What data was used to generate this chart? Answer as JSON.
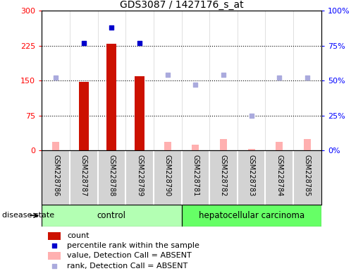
{
  "title": "GDS3087 / 1427176_s_at",
  "samples": [
    "GSM228786",
    "GSM228787",
    "GSM228788",
    "GSM228789",
    "GSM228790",
    "GSM228781",
    "GSM228782",
    "GSM228783",
    "GSM228784",
    "GSM228785"
  ],
  "n_control": 5,
  "n_cancer": 5,
  "count_values": [
    null,
    147,
    230,
    160,
    null,
    null,
    null,
    null,
    null,
    null
  ],
  "count_absent_values": [
    18,
    null,
    null,
    null,
    18,
    12,
    25,
    3,
    18,
    25
  ],
  "percentile_rank_values": [
    null,
    77,
    88,
    77,
    null,
    null,
    null,
    null,
    null,
    null
  ],
  "rank_absent_values": [
    52,
    null,
    null,
    null,
    54,
    47,
    54,
    25,
    52,
    52
  ],
  "ylim_left": [
    0,
    300
  ],
  "ylim_right": [
    0,
    100
  ],
  "yticks_left": [
    0,
    75,
    150,
    225,
    300
  ],
  "yticks_right": [
    0,
    25,
    50,
    75,
    100
  ],
  "yticklabels_left": [
    "0",
    "75",
    "150",
    "225",
    "300"
  ],
  "yticklabels_right": [
    "0%",
    "25%",
    "50%",
    "75%",
    "100%"
  ],
  "bar_color": "#cc1100",
  "bar_absent_color": "#ffb0b0",
  "scatter_blue_color": "#0000cc",
  "scatter_absent_color": "#aaaadd",
  "sample_bg": "#d3d3d3",
  "control_bg": "#b3ffb3",
  "cancer_bg": "#66ff66",
  "dotted_grid": [
    75,
    150,
    225
  ],
  "legend_items": [
    {
      "label": "count",
      "color": "#cc1100",
      "type": "bar"
    },
    {
      "label": "percentile rank within the sample",
      "color": "#0000cc",
      "type": "scatter"
    },
    {
      "label": "value, Detection Call = ABSENT",
      "color": "#ffb0b0",
      "type": "bar"
    },
    {
      "label": "rank, Detection Call = ABSENT",
      "color": "#aaaadd",
      "type": "scatter"
    }
  ],
  "disease_state_label": "disease state",
  "control_label": "control",
  "cancer_label": "hepatocellular carcinoma"
}
